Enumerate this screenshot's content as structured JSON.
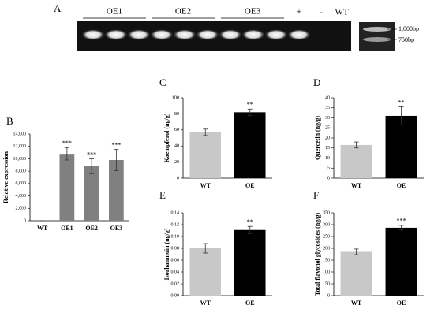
{
  "gel": {
    "panel_label": "A",
    "groups": [
      "OE1",
      "OE2",
      "OE3"
    ],
    "lanes": [
      "+",
      "-",
      "WT"
    ],
    "markers": [
      "1,000bp",
      "750bp"
    ]
  },
  "chart_data": [
    {
      "type": "bar",
      "panel_label": "B",
      "y_label": "Relative expression",
      "categories": [
        "WT",
        "OE1",
        "OE2",
        "OE3"
      ],
      "values": [
        0,
        10800,
        8800,
        9800
      ],
      "errors": [
        0,
        1000,
        1200,
        1700
      ],
      "stars": [
        null,
        "***",
        "***",
        "***"
      ],
      "colors": [
        "#808080",
        "#808080",
        "#808080",
        "#808080"
      ],
      "ylim": [
        0,
        14000
      ],
      "yticks": [
        0,
        {
          "value": 2000,
          "label": "2,000"
        },
        {
          "value": 4000,
          "label": "4,000"
        },
        {
          "value": 6000,
          "label": "6,000"
        },
        {
          "value": 8000,
          "label": "8,000"
        },
        {
          "value": 10000,
          "label": "10,000"
        },
        {
          "value": 12000,
          "label": "12,000"
        },
        {
          "value": 14000,
          "label": "14,000"
        }
      ]
    },
    {
      "type": "bar",
      "panel_label": "C",
      "y_label": "Kaempferol (ng/g)",
      "categories": [
        "WT",
        "OE"
      ],
      "values": [
        57,
        82
      ],
      "errors": [
        4,
        4
      ],
      "stars": [
        null,
        "**"
      ],
      "colors": [
        "#c8c8c8",
        "#000000"
      ],
      "ylim": [
        0,
        100
      ],
      "yticks": [
        0,
        20,
        40,
        60,
        80,
        100
      ]
    },
    {
      "type": "bar",
      "panel_label": "D",
      "y_label": "Quercetin (ng/g)",
      "categories": [
        "WT",
        "OE"
      ],
      "values": [
        16.5,
        31
      ],
      "errors": [
        1.5,
        4.5
      ],
      "stars": [
        null,
        "**"
      ],
      "colors": [
        "#c8c8c8",
        "#000000"
      ],
      "ylim": [
        0,
        40
      ],
      "yticks": [
        0,
        5,
        10,
        15,
        20,
        25,
        30,
        35,
        40
      ]
    },
    {
      "type": "bar",
      "panel_label": "E",
      "y_label": "Isorhamnoin (ng/g)",
      "categories": [
        "WT",
        "OE"
      ],
      "values": [
        0.08,
        0.111
      ],
      "errors": [
        0.008,
        0.006
      ],
      "stars": [
        null,
        "**"
      ],
      "colors": [
        "#c8c8c8",
        "#000000"
      ],
      "ylim": [
        0,
        0.14
      ],
      "yticks": [
        {
          "value": 0,
          "label": "0.00"
        },
        0.02,
        0.04,
        0.06,
        0.08,
        {
          "value": 0.1,
          "label": "0.10"
        },
        0.12,
        0.14
      ]
    },
    {
      "type": "bar",
      "panel_label": "F",
      "y_label": "Total flavonol glycosides (ng/g)",
      "categories": [
        "WT",
        "OE"
      ],
      "values": [
        185,
        287
      ],
      "errors": [
        12,
        10
      ],
      "stars": [
        null,
        "***"
      ],
      "colors": [
        "#c8c8c8",
        "#000000"
      ],
      "ylim": [
        0,
        350
      ],
      "yticks": [
        0,
        50,
        100,
        150,
        200,
        250,
        300,
        350
      ]
    }
  ]
}
